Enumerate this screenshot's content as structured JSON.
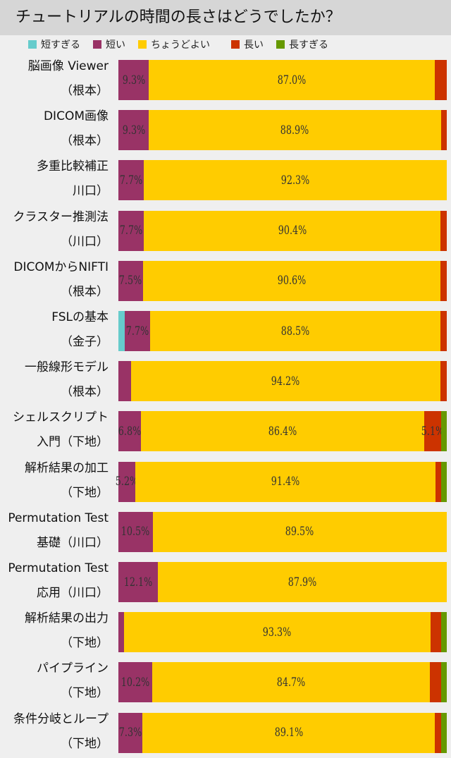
{
  "chart_data": {
    "type": "bar",
    "orientation": "horizontal",
    "stacked": true,
    "normalized_percent": true,
    "title": "チュートリアルの時間の長さはどうでしたか？",
    "legend_position": "top",
    "series": [
      {
        "name": "短すぎる",
        "color": "#66cccc"
      },
      {
        "name": "短い",
        "color": "#993366"
      },
      {
        "name": "ちょうどよい",
        "color": "#ffcc00"
      },
      {
        "name": "長い",
        "color": "#cc3300"
      },
      {
        "name": "長すぎる",
        "color": "#669900"
      }
    ],
    "categories": [
      [
        "脳画像 Viewer",
        "（根本）"
      ],
      [
        "DICOM画像",
        "（根本）"
      ],
      [
        "多重比較補正",
        "川口）"
      ],
      [
        "クラスター推測法",
        "（川口）"
      ],
      [
        "DICOMからNIFTI",
        "（根本）"
      ],
      [
        "FSLの基本",
        "（金子）"
      ],
      [
        "一般線形モデル",
        "（根本）"
      ],
      [
        "シェルスクリプト",
        "入門（下地）"
      ],
      [
        "解析結果の加工",
        "（下地）"
      ],
      [
        "Permutation Test",
        "基礎（川口）"
      ],
      [
        "Permutation Test",
        "応用（川口）"
      ],
      [
        "解析結果の出力",
        "（下地）"
      ],
      [
        "パイプライン",
        "（下地）"
      ],
      [
        "条件分岐とループ",
        "（下地）"
      ]
    ],
    "values": [
      [
        0,
        9.3,
        87.0,
        3.7,
        0
      ],
      [
        0,
        9.3,
        88.9,
        1.8,
        0
      ],
      [
        0,
        7.7,
        92.3,
        0,
        0
      ],
      [
        0,
        7.7,
        90.4,
        1.9,
        0
      ],
      [
        0,
        7.5,
        90.6,
        1.9,
        0
      ],
      [
        1.9,
        7.7,
        88.5,
        1.9,
        0
      ],
      [
        0,
        3.8,
        94.2,
        1.9,
        0
      ],
      [
        0,
        6.8,
        86.4,
        5.1,
        1.7
      ],
      [
        0,
        5.2,
        91.4,
        1.7,
        1.7
      ],
      [
        0,
        10.5,
        89.5,
        0,
        0
      ],
      [
        0,
        12.1,
        87.9,
        0,
        0
      ],
      [
        0,
        1.7,
        93.3,
        3.3,
        1.7
      ],
      [
        0,
        10.2,
        84.7,
        3.4,
        1.7
      ],
      [
        0,
        7.3,
        89.1,
        1.8,
        1.8
      ]
    ],
    "data_labels_shown_above": 5
  }
}
